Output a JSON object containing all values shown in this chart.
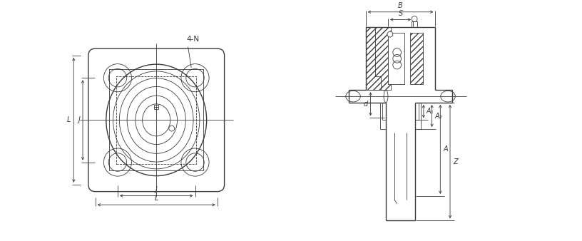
{
  "bg_color": "#ffffff",
  "lc": "#3a3a3a",
  "tl": 0.6,
  "ml": 1.0,
  "fig_width": 8.16,
  "fig_height": 3.38,
  "fs": 7,
  "label_4N": "4-N",
  "label_L": "L",
  "label_J": "J",
  "label_B": "B",
  "label_S": "S",
  "label_d": "d",
  "label_A1": "A₁",
  "label_A2": "A₂",
  "label_A": "A",
  "label_Z": "Z"
}
